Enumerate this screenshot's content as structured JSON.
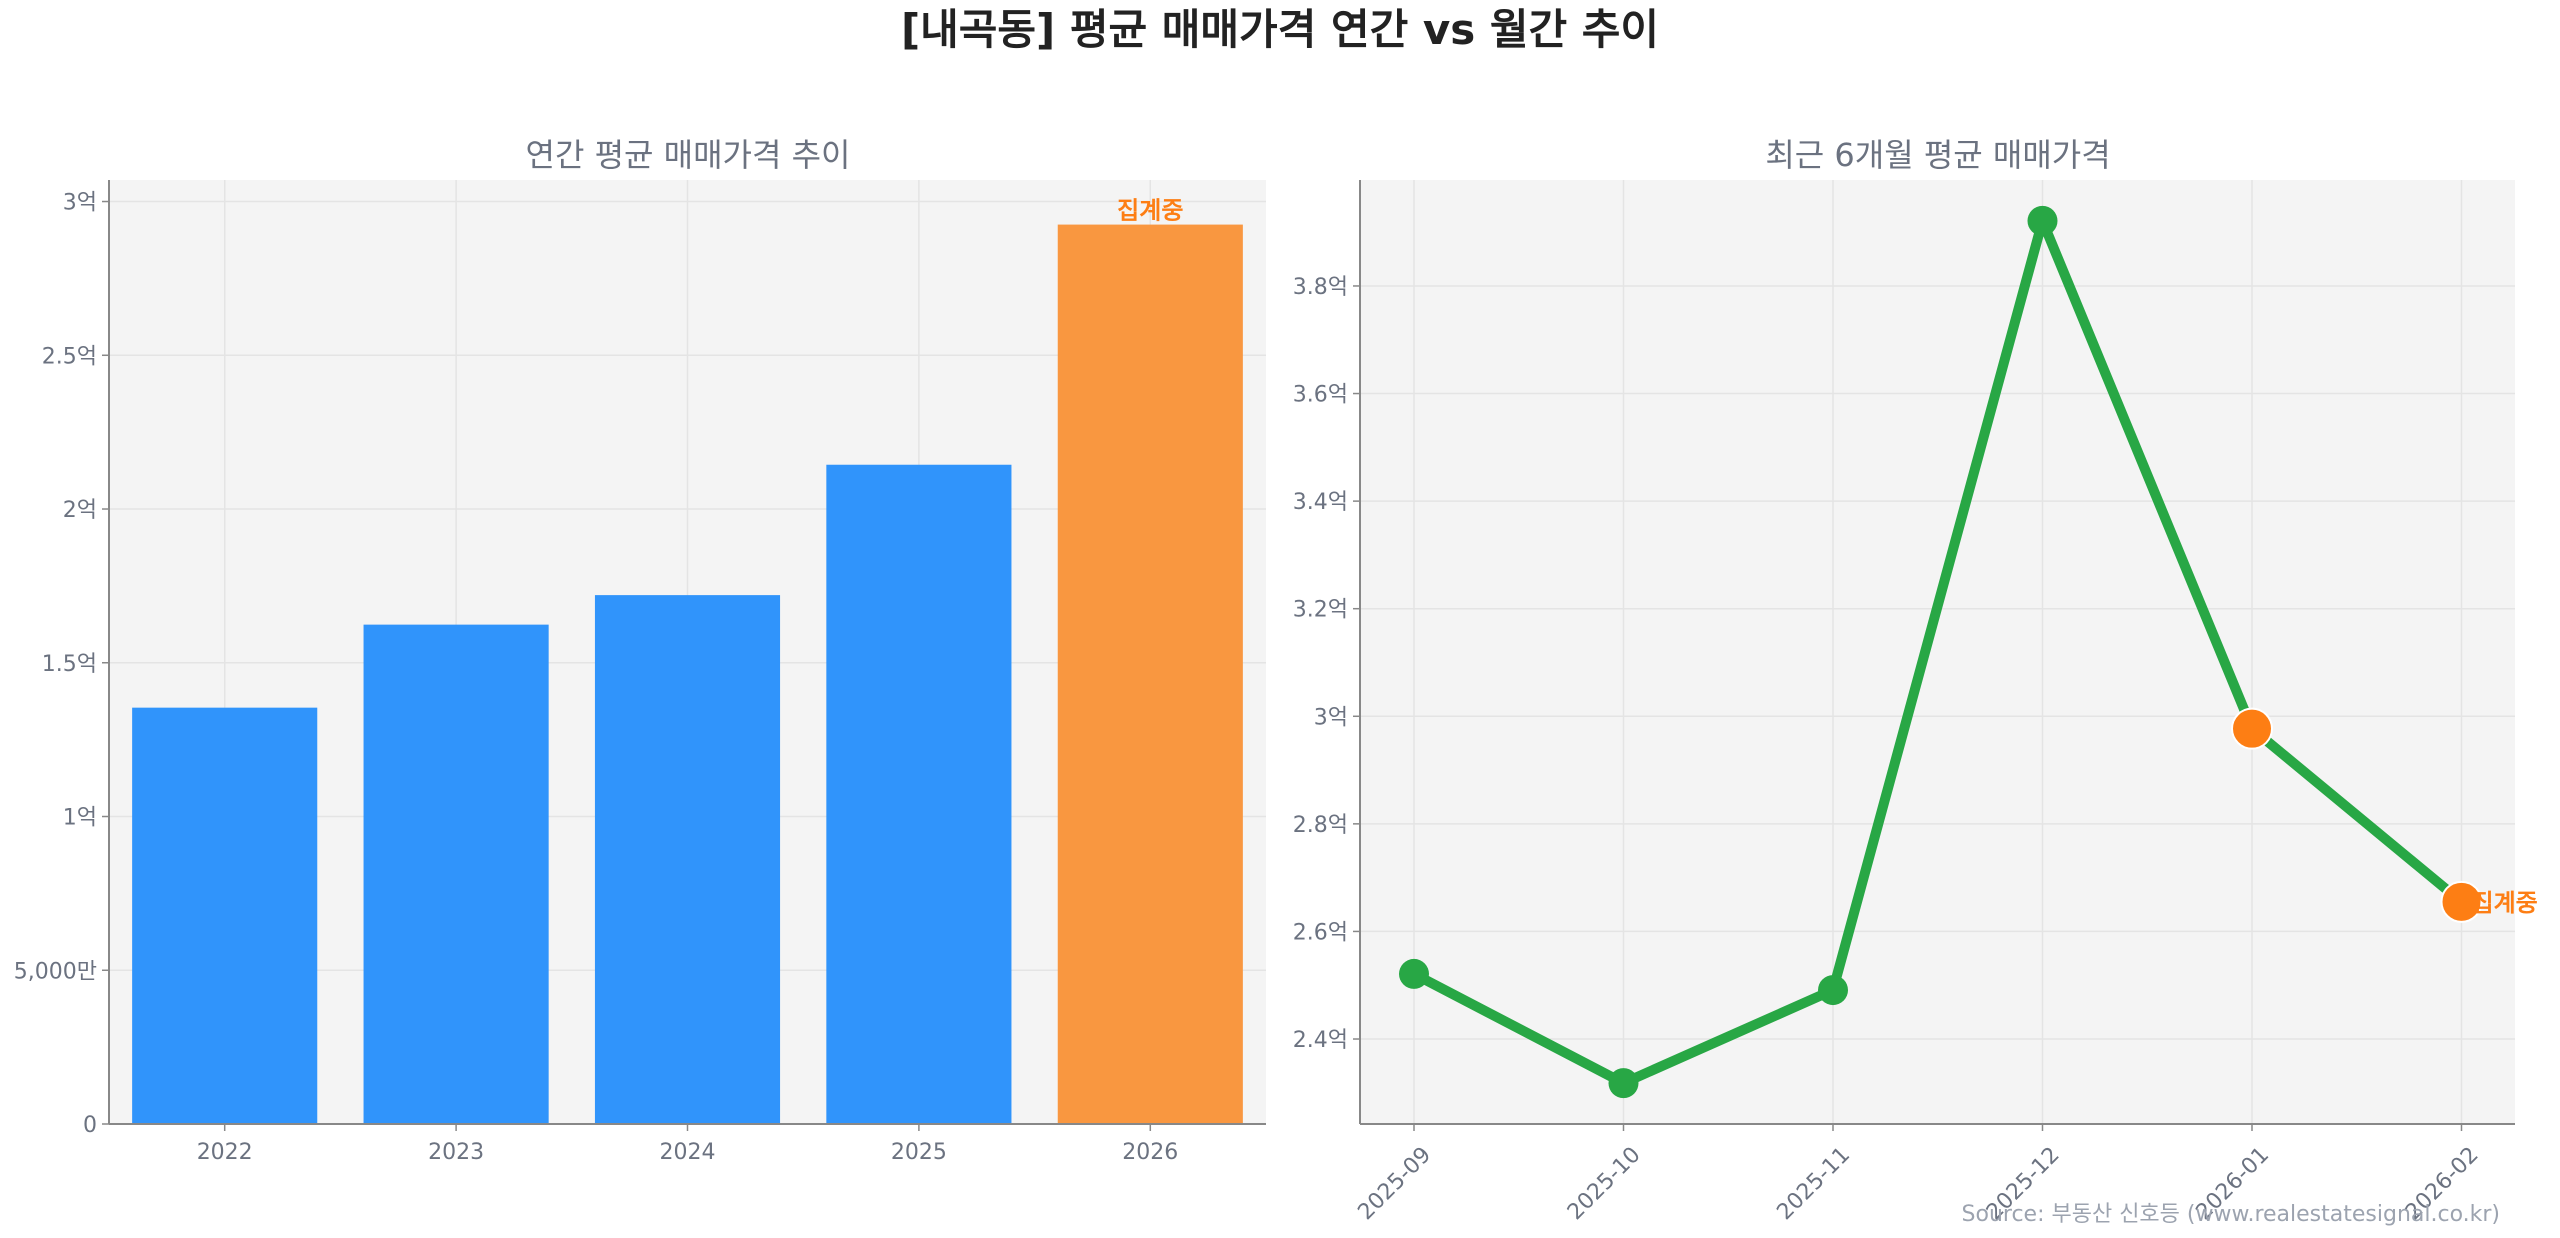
{
  "title": "[내곡동] 평균 매매가격 연간 vs 월간 추이",
  "source": "Source: 부동산 신호등 (www.realestatesignal.co.kr)",
  "colors": {
    "bar": "#3094fb",
    "bar_partial": "#f99740",
    "line": "#28a745",
    "partial_marker": "#fd7e14",
    "annotation": "#fd7e14",
    "plot_bg": "#f4f4f4"
  },
  "chart_data": [
    {
      "type": "bar",
      "title": "연간 평균 매매가격 추이",
      "categories": [
        "2022",
        "2023",
        "2024",
        "2025",
        "2026"
      ],
      "values": [
        1.354,
        1.624,
        1.72,
        2.144,
        2.925
      ],
      "unit": "억",
      "partial": [
        false,
        false,
        false,
        false,
        true
      ],
      "annotation": "집계중",
      "ylim": [
        0,
        3.07
      ],
      "yticks": [
        0,
        0.5,
        1,
        1.5,
        2,
        2.5,
        3
      ],
      "ytick_labels": [
        "0",
        "5,000만",
        "1억",
        "1.5억",
        "2억",
        "2.5억",
        "3억"
      ],
      "grid": true
    },
    {
      "type": "line",
      "title": "최근 6개월 평균 매매가격",
      "categories": [
        "2025-09",
        "2025-10",
        "2025-11",
        "2025-12",
        "2026-01",
        "2026-02"
      ],
      "values": [
        2.521,
        2.318,
        2.491,
        3.921,
        2.977,
        2.655
      ],
      "unit": "억",
      "partial": [
        false,
        false,
        false,
        false,
        true,
        true
      ],
      "annotation": "집계중",
      "ylim": [
        2.242,
        3.997
      ],
      "yticks": [
        2.4,
        2.6,
        2.8,
        3.0,
        3.2,
        3.4,
        3.6,
        3.8
      ],
      "ytick_labels": [
        "2.4억",
        "2.6억",
        "2.8억",
        "3억",
        "3.2억",
        "3.4억",
        "3.6억",
        "3.8억"
      ],
      "grid": true
    }
  ]
}
